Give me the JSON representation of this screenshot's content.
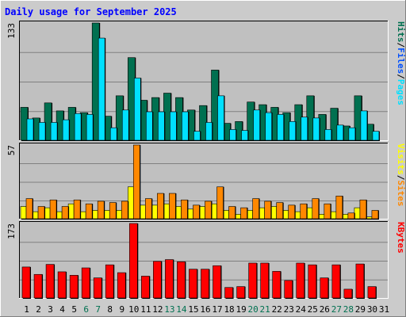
{
  "title": "Daily usage for September 2025",
  "colors": {
    "bg": "#cbcbcb",
    "plot_bg": "#c0c0c0",
    "hits": "#007050",
    "files": "#00e0ff",
    "visits": "#ffff00",
    "sites": "#ff8800",
    "kbytes": "#ff0000",
    "title": "#0000ff",
    "weekend": "#007050"
  },
  "chart_data": [
    {
      "type": "bar",
      "title": "Daily usage for September 2025",
      "categories": [
        "1",
        "2",
        "3",
        "4",
        "5",
        "6",
        "7",
        "8",
        "9",
        "10",
        "11",
        "12",
        "13",
        "14",
        "15",
        "16",
        "17",
        "18",
        "19",
        "20",
        "21",
        "22",
        "23",
        "24",
        "25",
        "26",
        "27",
        "28",
        "29",
        "30",
        "31"
      ],
      "weekend_days": [
        "6",
        "7",
        "13",
        "14",
        "20",
        "21",
        "27",
        "28"
      ],
      "ymax_label": "133",
      "ylim": [
        0,
        133
      ],
      "legend": [
        "Pages",
        "Files",
        "Hits"
      ],
      "series": [
        {
          "name": "Hits",
          "values": [
            38,
            26,
            43,
            34,
            38,
            32,
            133,
            28,
            51,
            94,
            46,
            49,
            54,
            49,
            35,
            40,
            80,
            20,
            22,
            44,
            41,
            38,
            32,
            41,
            51,
            30,
            37,
            17,
            51,
            19,
            0
          ]
        },
        {
          "name": "Files",
          "values": [
            25,
            21,
            21,
            24,
            31,
            30,
            116,
            15,
            35,
            71,
            33,
            33,
            33,
            33,
            11,
            21,
            51,
            13,
            12,
            35,
            32,
            30,
            22,
            27,
            26,
            13,
            18,
            15,
            34,
            11,
            0
          ]
        },
        {
          "name": "Pages",
          "values": [
            25,
            21,
            21,
            24,
            31,
            30,
            116,
            15,
            35,
            71,
            33,
            33,
            33,
            33,
            11,
            21,
            51,
            13,
            12,
            35,
            32,
            30,
            22,
            27,
            26,
            13,
            18,
            15,
            34,
            11,
            0
          ]
        }
      ]
    },
    {
      "type": "bar",
      "ymax_label": "57",
      "ylim": [
        0,
        57
      ],
      "legend": [
        "Sites",
        "Visits"
      ],
      "series": [
        {
          "name": "Visits",
          "values": [
            10,
            6,
            9,
            6,
            12,
            6,
            7,
            7,
            7,
            25,
            11,
            11,
            12,
            10,
            8,
            10,
            12,
            7,
            4,
            7,
            9,
            10,
            7,
            6,
            9,
            4,
            6,
            4,
            9,
            2,
            0
          ]
        },
        {
          "name": "Sites",
          "values": [
            16,
            10,
            15,
            10,
            15,
            12,
            14,
            13,
            14,
            57,
            16,
            20,
            20,
            15,
            11,
            14,
            25,
            10,
            9,
            16,
            14,
            13,
            11,
            12,
            16,
            12,
            18,
            5,
            15,
            7,
            0
          ]
        }
      ]
    },
    {
      "type": "bar",
      "ymax_label": "173",
      "ylim": [
        0,
        173
      ],
      "legend": [
        "KBytes"
      ],
      "series": [
        {
          "name": "KBytes",
          "values": [
            73,
            56,
            79,
            62,
            54,
            71,
            48,
            78,
            60,
            173,
            52,
            86,
            90,
            85,
            68,
            68,
            76,
            26,
            28,
            82,
            82,
            63,
            42,
            82,
            78,
            48,
            78,
            22,
            80,
            28,
            0
          ]
        }
      ]
    }
  ]
}
